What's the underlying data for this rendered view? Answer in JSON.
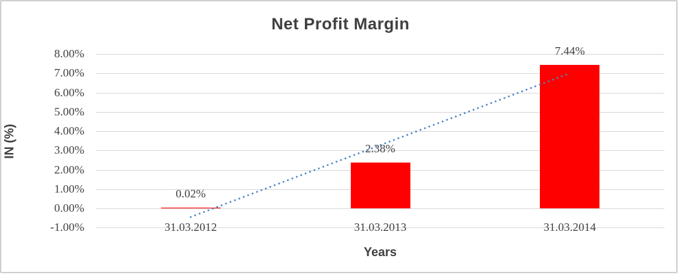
{
  "chart_data": {
    "type": "bar",
    "title": "Net Profit Margin",
    "xlabel": "Years",
    "ylabel": "IN (%)",
    "categories": [
      "31.03.2012",
      "31.03.2013",
      "31.03.2014"
    ],
    "values": [
      0.02,
      2.38,
      7.44
    ],
    "data_labels": [
      "0.02%",
      "2.38%",
      "7.44%"
    ],
    "ylim": [
      -1,
      8
    ],
    "yticks": [
      8,
      7,
      6,
      5,
      4,
      3,
      2,
      1,
      0,
      -1
    ],
    "ytick_labels": [
      "8.00%",
      "7.00%",
      "6.00%",
      "5.00%",
      "4.00%",
      "3.00%",
      "2.00%",
      "1.00%",
      "0.00%",
      "-1.00%"
    ],
    "grid": true,
    "legend": "none",
    "bar_color": "#ff0000",
    "gridline_color": "#d9d9d9",
    "text_color": "#404040",
    "trendline": {
      "type": "linear",
      "style": "dotted",
      "color": "#4a86c8",
      "start": {
        "category_index": 0,
        "value": -0.45
      },
      "end": {
        "category_index": 2,
        "value": 7.0
      }
    }
  }
}
